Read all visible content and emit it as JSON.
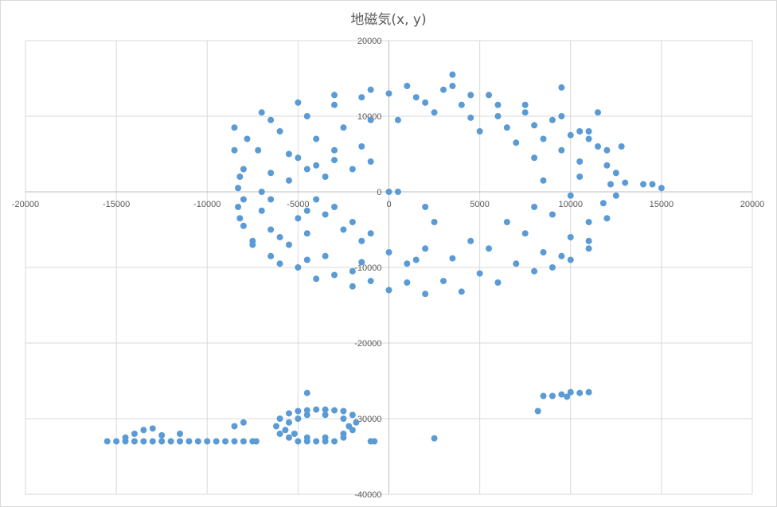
{
  "chart_data": {
    "type": "scatter",
    "title": "地磁気(x, y)",
    "xlabel": "",
    "ylabel": "",
    "xlim": [
      -20000,
      20000
    ],
    "ylim": [
      -40000,
      20000
    ],
    "x_ticks": [
      -20000,
      -15000,
      -10000,
      -5000,
      0,
      5000,
      10000,
      15000,
      20000
    ],
    "y_ticks": [
      20000,
      10000,
      0,
      -10000,
      -20000,
      -30000,
      -40000
    ],
    "grid": true,
    "legend": "none",
    "marker_color": "#5b9bd5",
    "series": [
      {
        "values_note": "",
        "points": [
          [
            0,
            13000
          ],
          [
            1500,
            12500
          ],
          [
            3000,
            13500
          ],
          [
            4500,
            12800
          ],
          [
            6000,
            11500
          ],
          [
            7500,
            10500
          ],
          [
            9000,
            9500
          ],
          [
            10500,
            8000
          ],
          [
            11500,
            6000
          ],
          [
            12000,
            3500
          ],
          [
            12200,
            1000
          ],
          [
            11800,
            -1500
          ],
          [
            11000,
            -4000
          ],
          [
            10000,
            -6000
          ],
          [
            8500,
            -8000
          ],
          [
            7000,
            -9500
          ],
          [
            5000,
            -10800
          ],
          [
            3000,
            -11800
          ],
          [
            1000,
            -12000
          ],
          [
            -1000,
            -11800
          ],
          [
            -3000,
            -11000
          ],
          [
            -5000,
            -10000
          ],
          [
            -6500,
            -8500
          ],
          [
            -7500,
            -6500
          ],
          [
            -8000,
            -4500
          ],
          [
            -8300,
            -2000
          ],
          [
            -8300,
            500
          ],
          [
            -8000,
            3000
          ],
          [
            -7200,
            5500
          ],
          [
            -6000,
            8000
          ],
          [
            -4500,
            10000
          ],
          [
            -3000,
            11500
          ],
          [
            -1500,
            12500
          ],
          [
            500,
            9500
          ],
          [
            2500,
            10500
          ],
          [
            4500,
            9800
          ],
          [
            6500,
            8500
          ],
          [
            8500,
            7000
          ],
          [
            9500,
            5500
          ],
          [
            10500,
            4000
          ],
          [
            10500,
            2000
          ],
          [
            10000,
            -500
          ],
          [
            9000,
            -3000
          ],
          [
            7500,
            -5500
          ],
          [
            5500,
            -7500
          ],
          [
            3500,
            -8800
          ],
          [
            1000,
            -9500
          ],
          [
            -1500,
            -9300
          ],
          [
            -3500,
            -8500
          ],
          [
            -5500,
            -7000
          ],
          [
            -6500,
            -5000
          ],
          [
            -7000,
            -2500
          ],
          [
            -7000,
            0
          ],
          [
            -6500,
            2500
          ],
          [
            -5500,
            5000
          ],
          [
            -4000,
            7000
          ],
          [
            -2500,
            8500
          ],
          [
            -1000,
            9500
          ],
          [
            2000,
            11800
          ],
          [
            4000,
            11500
          ],
          [
            6000,
            10000
          ],
          [
            8000,
            8800
          ],
          [
            10000,
            7500
          ],
          [
            11000,
            7000
          ],
          [
            -5000,
            4500
          ],
          [
            -4000,
            3500
          ],
          [
            -3000,
            4200
          ],
          [
            -2000,
            3000
          ],
          [
            -1000,
            4000
          ],
          [
            -3500,
            2000
          ],
          [
            -5500,
            1500
          ],
          [
            -6500,
            -1000
          ],
          [
            -4000,
            -1000
          ],
          [
            -3000,
            -2000
          ],
          [
            -5000,
            -3500
          ],
          [
            -6000,
            -6000
          ],
          [
            -4500,
            -5500
          ],
          [
            -2000,
            -4000
          ],
          [
            -1500,
            -6500
          ],
          [
            0,
            -8000
          ],
          [
            2000,
            -7500
          ],
          [
            4500,
            -6500
          ],
          [
            6500,
            -4000
          ],
          [
            8000,
            -2000
          ],
          [
            8500,
            1500
          ],
          [
            8000,
            4500
          ],
          [
            7000,
            6500
          ],
          [
            5000,
            8000
          ],
          [
            -6500,
            9500
          ],
          [
            -7800,
            7000
          ],
          [
            -8500,
            5500
          ],
          [
            -8200,
            2000
          ],
          [
            -8000,
            -1000
          ],
          [
            -8200,
            -3500
          ],
          [
            -7500,
            -7000
          ],
          [
            -6000,
            -9500
          ],
          [
            -4000,
            -11500
          ],
          [
            -2000,
            -12500
          ],
          [
            0,
            -13000
          ],
          [
            2000,
            -13500
          ],
          [
            4000,
            -13200
          ],
          [
            6000,
            -12000
          ],
          [
            8000,
            -10500
          ],
          [
            9500,
            -8500
          ],
          [
            11000,
            -6500
          ],
          [
            12000,
            -3500
          ],
          [
            12500,
            -500
          ],
          [
            12500,
            2500
          ],
          [
            12000,
            5500
          ],
          [
            11000,
            8000
          ],
          [
            9500,
            10000
          ],
          [
            7500,
            11500
          ],
          [
            5500,
            12800
          ],
          [
            3500,
            14000
          ],
          [
            1000,
            14000
          ],
          [
            -1000,
            13500
          ],
          [
            -3000,
            12800
          ],
          [
            -5000,
            11800
          ],
          [
            -7000,
            10500
          ],
          [
            -8500,
            8500
          ],
          [
            3500,
            15500
          ],
          [
            9500,
            13800
          ],
          [
            11500,
            10500
          ],
          [
            12800,
            6000
          ],
          [
            14500,
            1000
          ],
          [
            15000,
            500
          ],
          [
            14000,
            1000
          ],
          [
            13000,
            1200
          ],
          [
            -4500,
            -2500
          ],
          [
            -3500,
            -3000
          ],
          [
            -2500,
            -5000
          ],
          [
            -1000,
            -5500
          ],
          [
            -4500,
            3000
          ],
          [
            -3000,
            5500
          ],
          [
            -1500,
            6000
          ],
          [
            0,
            0
          ],
          [
            500,
            0
          ],
          [
            2000,
            -2000
          ],
          [
            2500,
            -4000
          ],
          [
            1500,
            -9000
          ],
          [
            -2000,
            -10500
          ],
          [
            -4500,
            -9000
          ],
          [
            9000,
            -10000
          ],
          [
            10000,
            -9000
          ],
          [
            11000,
            -7500
          ],
          [
            -15500,
            -33000
          ],
          [
            -15000,
            -33000
          ],
          [
            -14500,
            -33000
          ],
          [
            -14000,
            -33000
          ],
          [
            -13500,
            -33000
          ],
          [
            -13000,
            -33000
          ],
          [
            -12500,
            -33000
          ],
          [
            -12000,
            -33000
          ],
          [
            -11500,
            -33000
          ],
          [
            -11000,
            -33000
          ],
          [
            -10500,
            -33000
          ],
          [
            -10000,
            -33000
          ],
          [
            -9500,
            -33000
          ],
          [
            -9000,
            -33000
          ],
          [
            -8500,
            -33000
          ],
          [
            -8000,
            -33000
          ],
          [
            -7500,
            -33000
          ],
          [
            -14500,
            -32500
          ],
          [
            -14000,
            -32000
          ],
          [
            -13500,
            -31500
          ],
          [
            -13000,
            -31300
          ],
          [
            -12500,
            -32200
          ],
          [
            -11500,
            -32000
          ],
          [
            -8500,
            -31000
          ],
          [
            -8000,
            -30500
          ],
          [
            -7300,
            -33000
          ],
          [
            -6000,
            -30000
          ],
          [
            -5500,
            -29300
          ],
          [
            -5000,
            -29000
          ],
          [
            -4500,
            -28900
          ],
          [
            -4000,
            -28800
          ],
          [
            -3500,
            -28800
          ],
          [
            -3000,
            -28900
          ],
          [
            -2500,
            -29000
          ],
          [
            -2000,
            -29500
          ],
          [
            -1800,
            -30500
          ],
          [
            -2000,
            -31500
          ],
          [
            -2500,
            -32500
          ],
          [
            -3000,
            -33000
          ],
          [
            -3500,
            -33000
          ],
          [
            -4000,
            -33000
          ],
          [
            -4500,
            -33000
          ],
          [
            -5000,
            -33000
          ],
          [
            -5500,
            -32500
          ],
          [
            -6000,
            -32000
          ],
          [
            -6200,
            -31000
          ],
          [
            -5500,
            -30500
          ],
          [
            -5000,
            -30000
          ],
          [
            -4500,
            -29500
          ],
          [
            -3500,
            -29500
          ],
          [
            -2500,
            -30000
          ],
          [
            -2200,
            -31000
          ],
          [
            -2500,
            -32000
          ],
          [
            -3500,
            -32500
          ],
          [
            -4500,
            -32500
          ],
          [
            -5200,
            -32000
          ],
          [
            -5700,
            -31500
          ],
          [
            -4500,
            -26600
          ],
          [
            -1000,
            -33000
          ],
          [
            -800,
            -33000
          ],
          [
            2500,
            -32600
          ],
          [
            8500,
            -27000
          ],
          [
            9000,
            -27000
          ],
          [
            9500,
            -26800
          ],
          [
            10000,
            -26500
          ],
          [
            10500,
            -26600
          ],
          [
            11000,
            -26500
          ],
          [
            9800,
            -27100
          ],
          [
            8200,
            -29000
          ]
        ]
      }
    ]
  }
}
